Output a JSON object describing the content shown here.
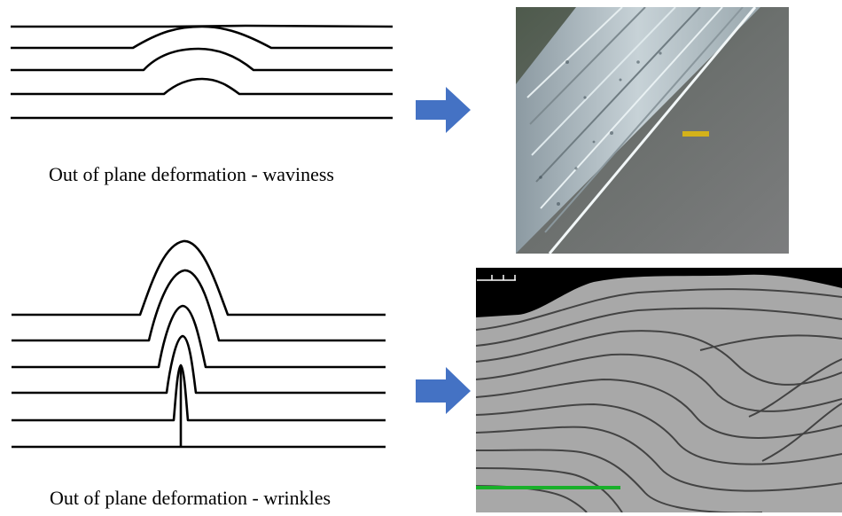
{
  "captions": {
    "waviness": "Out of plane deformation - waviness",
    "wrinkles": "Out of plane deformation - wrinkles"
  },
  "colors": {
    "arrow": "#4472c4",
    "line": "#000000",
    "photo_background": "#6e7170",
    "photo_fiber": "#c9d4d8",
    "scale_bar_yellow": "#d4b21a",
    "ct_background": "#a9a9a9",
    "ct_layer": "#2e2e2e",
    "scale_bar_green": "#19b02a"
  },
  "icons": {
    "arrow_top": "right-arrow-icon",
    "arrow_bottom": "right-arrow-icon"
  }
}
